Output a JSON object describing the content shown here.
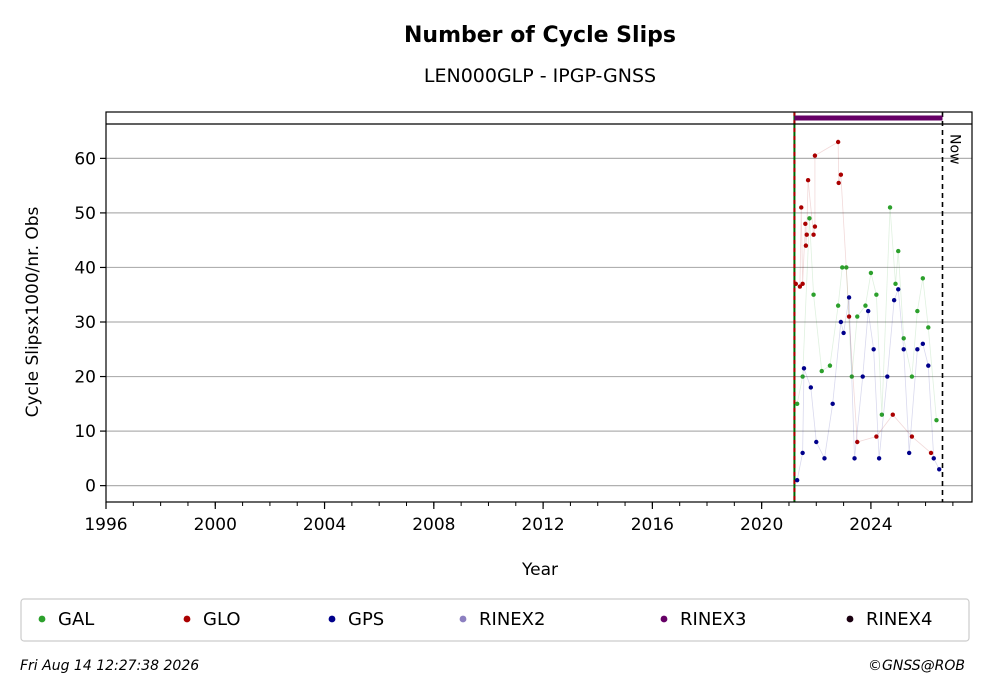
{
  "chart_data": {
    "type": "scatter",
    "title": "Number of Cycle Slips",
    "subtitle": "LEN000GLP - IPGP-GNSS",
    "xlabel": "Year",
    "ylabel": "Cycle Slipsx1000/nr. Obs",
    "xlim": [
      1996,
      2027.7
    ],
    "ylim": [
      -3,
      68.5
    ],
    "x_ticks": [
      1996,
      2000,
      2004,
      2008,
      2012,
      2016,
      2020,
      2024
    ],
    "y_ticks": [
      0,
      10,
      20,
      30,
      40,
      50,
      60
    ],
    "grid": "horizontal",
    "legend_position": "bottom",
    "now_label": "Now",
    "now_x": 2026.62,
    "data_start_x": 2021.2,
    "rinex3_bar": [
      2021.2,
      2026.62
    ],
    "colors": {
      "GAL": "#2ca02c",
      "GLO": "#aa0000",
      "GPS": "#00008b",
      "RINEX2": "#8c7fc0",
      "RINEX3": "#660066",
      "RINEX4": "#1a0010",
      "start_line": "#006400"
    },
    "series": [
      {
        "name": "GAL",
        "values": [
          [
            2021.3,
            15
          ],
          [
            2021.5,
            20
          ],
          [
            2021.75,
            49
          ],
          [
            2021.9,
            35
          ],
          [
            2022.2,
            21
          ],
          [
            2022.5,
            22
          ],
          [
            2022.8,
            33
          ],
          [
            2022.95,
            40
          ],
          [
            2023.1,
            40
          ],
          [
            2023.3,
            20
          ],
          [
            2023.5,
            31
          ],
          [
            2023.8,
            33
          ],
          [
            2024.0,
            39
          ],
          [
            2024.2,
            35
          ],
          [
            2024.4,
            13
          ],
          [
            2024.7,
            51
          ],
          [
            2024.9,
            37
          ],
          [
            2025.0,
            43
          ],
          [
            2025.2,
            27
          ],
          [
            2025.5,
            20
          ],
          [
            2025.7,
            32
          ],
          [
            2025.9,
            38
          ],
          [
            2026.1,
            29
          ],
          [
            2026.4,
            12
          ]
        ]
      },
      {
        "name": "GLO",
        "values": [
          [
            2021.25,
            37
          ],
          [
            2021.4,
            36.5
          ],
          [
            2021.5,
            37
          ],
          [
            2021.45,
            51
          ],
          [
            2021.6,
            48
          ],
          [
            2021.62,
            44
          ],
          [
            2021.65,
            46
          ],
          [
            2021.7,
            56
          ],
          [
            2021.9,
            46
          ],
          [
            2021.95,
            47.5
          ],
          [
            2021.95,
            60.5
          ],
          [
            2022.8,
            63
          ],
          [
            2022.82,
            55.5
          ],
          [
            2022.9,
            57
          ],
          [
            2023.2,
            31
          ],
          [
            2023.5,
            8
          ],
          [
            2024.2,
            9
          ],
          [
            2024.8,
            13
          ],
          [
            2025.5,
            9
          ],
          [
            2026.2,
            6
          ]
        ]
      },
      {
        "name": "GPS",
        "values": [
          [
            2021.3,
            1
          ],
          [
            2021.5,
            6
          ],
          [
            2021.55,
            21.5
          ],
          [
            2021.8,
            18
          ],
          [
            2022.0,
            8
          ],
          [
            2022.3,
            5
          ],
          [
            2022.6,
            15
          ],
          [
            2022.9,
            30
          ],
          [
            2023.0,
            28
          ],
          [
            2023.2,
            34.5
          ],
          [
            2023.4,
            5
          ],
          [
            2023.7,
            20
          ],
          [
            2023.9,
            32
          ],
          [
            2024.1,
            25
          ],
          [
            2024.3,
            5
          ],
          [
            2024.6,
            20
          ],
          [
            2024.85,
            34
          ],
          [
            2025.0,
            36
          ],
          [
            2025.2,
            25
          ],
          [
            2025.4,
            6
          ],
          [
            2025.7,
            25
          ],
          [
            2025.9,
            26
          ],
          [
            2026.1,
            22
          ],
          [
            2026.3,
            5
          ],
          [
            2026.5,
            3
          ]
        ]
      },
      {
        "name": "RINEX2",
        "values": []
      },
      {
        "name": "RINEX3",
        "values": []
      },
      {
        "name": "RINEX4",
        "values": []
      }
    ]
  },
  "legend": [
    {
      "label": "GAL",
      "color": "#2ca02c"
    },
    {
      "label": "GLO",
      "color": "#aa0000"
    },
    {
      "label": "GPS",
      "color": "#00008b"
    },
    {
      "label": "RINEX2",
      "color": "#8c7fc0"
    },
    {
      "label": "RINEX3",
      "color": "#660066"
    },
    {
      "label": "RINEX4",
      "color": "#1a0010"
    }
  ],
  "footer": {
    "timestamp": "Fri Aug 14 12:27:38 2026",
    "credit": "©GNSS@ROB"
  }
}
